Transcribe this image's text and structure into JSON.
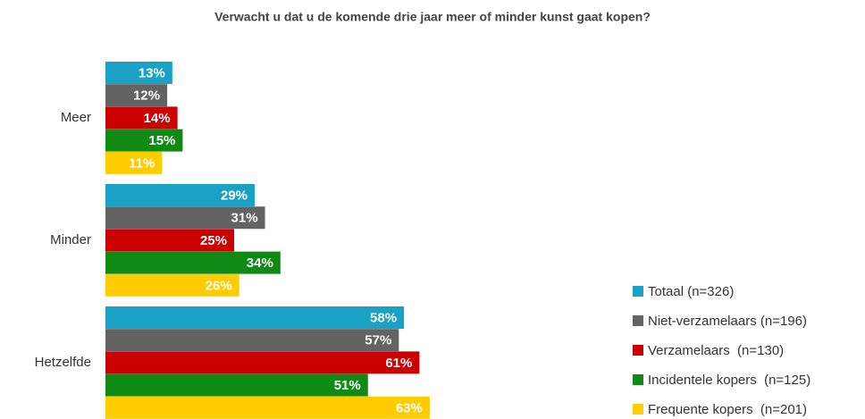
{
  "chart_data": {
    "type": "bar",
    "orientation": "horizontal",
    "title": "Verwacht u dat u de komende drie jaar meer of minder kunst gaat kopen?",
    "categories": [
      "Meer",
      "Minder",
      "Hetzelfde"
    ],
    "series": [
      {
        "name": "Totaal (n=326)",
        "color": "#19a2c6",
        "values": [
          13,
          29,
          58
        ],
        "value_labels": [
          "13%",
          "29%",
          "58%"
        ]
      },
      {
        "name": "Niet-verzamelaars (n=196)",
        "color": "#636363",
        "values": [
          12,
          31,
          57
        ],
        "value_labels": [
          "12%",
          "31%",
          "57%"
        ]
      },
      {
        "name": "Verzamelaars  (n=130)",
        "color": "#cc0000",
        "values": [
          14,
          25,
          61
        ],
        "value_labels": [
          "14%",
          "25%",
          "61%"
        ]
      },
      {
        "name": "Incidentele kopers  (n=125)",
        "color": "#0f8a14",
        "values": [
          15,
          34,
          51
        ],
        "value_labels": [
          "15%",
          "34%",
          "51%"
        ]
      },
      {
        "name": "Frequente kopers  (n=201)",
        "color": "#ffcc00",
        "values": [
          11,
          26,
          63
        ],
        "value_labels": [
          "11%",
          "26%",
          "63%"
        ]
      }
    ],
    "legend": "bottom-right"
  }
}
